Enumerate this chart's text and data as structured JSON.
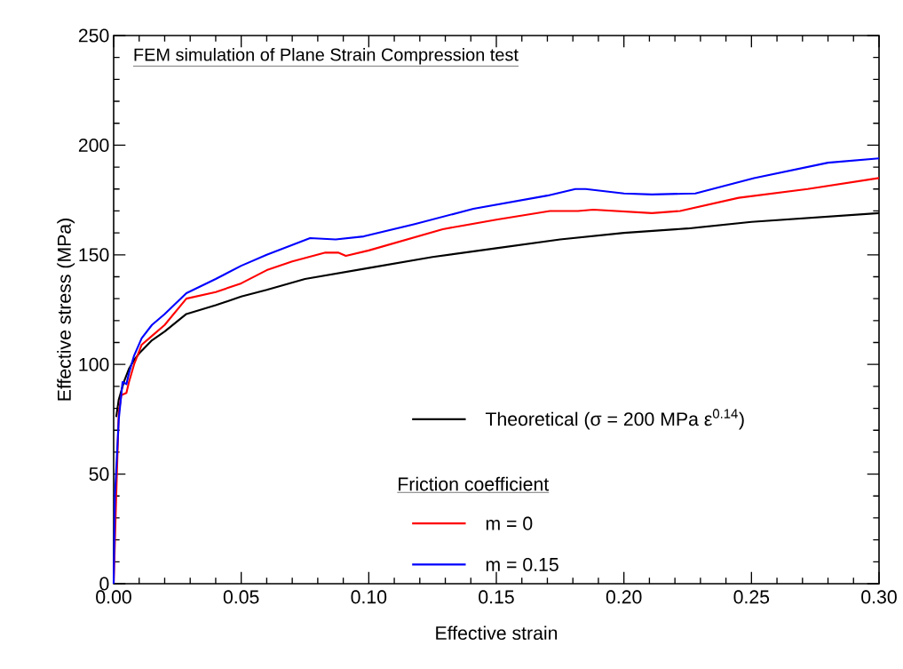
{
  "chart_data": {
    "type": "line",
    "title": "FEM simulation of Plane Strain Compression test",
    "xlabel": "Effective strain",
    "ylabel": "Effective stress (MPa)",
    "legend_title": "Friction coefficient",
    "xlim": [
      0,
      0.3
    ],
    "ylim": [
      0,
      250
    ],
    "xticks": [
      {
        "value": 0,
        "label": "0.00"
      },
      {
        "value": 0.05,
        "label": "0.05"
      },
      {
        "value": 0.1,
        "label": "0.10"
      },
      {
        "value": 0.15,
        "label": "0.15"
      },
      {
        "value": 0.2,
        "label": "0.20"
      },
      {
        "value": 0.25,
        "label": "0.25"
      },
      {
        "value": 0.3,
        "label": "0.30"
      }
    ],
    "yticks": [
      0,
      50,
      100,
      150,
      200,
      250
    ],
    "legend": "bottom right",
    "line_style": "solid",
    "series": [
      {
        "name": "Theoretical (σ = 200 MPa ε$^{0.14}$)",
        "color": "#000000",
        "x": [
          0.001,
          0.002,
          0.004,
          0.006,
          0.008,
          0.01,
          0.015,
          0.02,
          0.0285,
          0.04,
          0.05,
          0.06,
          0.075,
          0.1,
          0.125,
          0.15,
          0.175,
          0.2,
          0.225,
          0.25,
          0.275,
          0.3
        ],
        "values": [
          76,
          84,
          92,
          98,
          102,
          105,
          111,
          115,
          123,
          127,
          131,
          134,
          139,
          144,
          149,
          153,
          157,
          160,
          162,
          165,
          167,
          169
        ]
      },
      {
        "name": "m = 0",
        "color": "#ff0000",
        "x": [
          0,
          0.001,
          0.002,
          0.003,
          0.005,
          0.006,
          0.008,
          0.011,
          0.015,
          0.02,
          0.0285,
          0.04,
          0.05,
          0.06,
          0.07,
          0.083,
          0.088,
          0.091,
          0.1,
          0.129,
          0.15,
          0.171,
          0.182,
          0.188,
          0.211,
          0.222,
          0.245,
          0.272,
          0.3
        ],
        "values": [
          0,
          40,
          78,
          86,
          87,
          92,
          100,
          109,
          113,
          118,
          130,
          133,
          137,
          143,
          147,
          151,
          151,
          149.5,
          152,
          161.7,
          166,
          170,
          170,
          170.6,
          169,
          170,
          176,
          180,
          185
        ]
      },
      {
        "name": "m = 0.15",
        "color": "#0000ff",
        "x": [
          0,
          0.0005,
          0.002,
          0.0035,
          0.005,
          0.006,
          0.008,
          0.011,
          0.015,
          0.02,
          0.0285,
          0.04,
          0.05,
          0.06,
          0.077,
          0.087,
          0.098,
          0.118,
          0.141,
          0.17,
          0.181,
          0.185,
          0.2,
          0.211,
          0.228,
          0.251,
          0.28,
          0.3
        ],
        "values": [
          0,
          40,
          75,
          92,
          91,
          96,
          104,
          112,
          118,
          123,
          132.5,
          139,
          145,
          150,
          157.6,
          157,
          158.4,
          164,
          171,
          177,
          180,
          180,
          178,
          177.5,
          178,
          185,
          192,
          194
        ]
      }
    ]
  }
}
